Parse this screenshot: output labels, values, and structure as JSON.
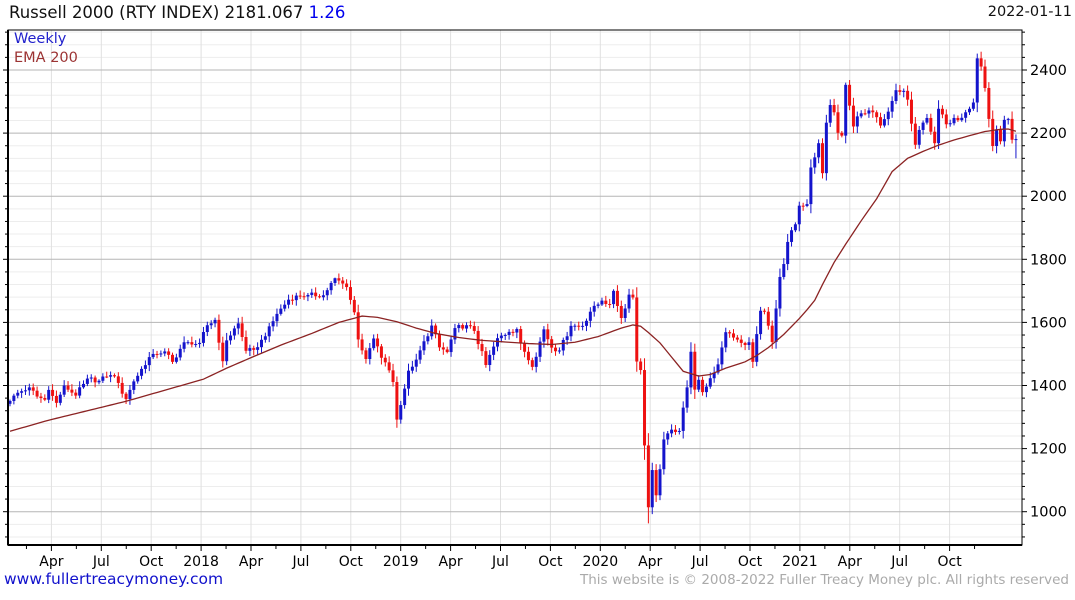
{
  "header": {
    "title": "Russell 2000 (RTY INDEX) 2181.067",
    "change": "1.26",
    "date": "2022-01-11"
  },
  "legend": {
    "timeframe": "Weekly",
    "overlay": "EMA 200"
  },
  "footer": {
    "link": "www.fullertreacymoney.com",
    "copyright": "This website is © 2008-2022 Fuller Treacy Money plc. All rights reserved"
  },
  "colors": {
    "up_candle": "#1414cc",
    "down_candle": "#ee1111",
    "ema_line": "#8b2323",
    "grid_major": "#b5b5b5",
    "grid_minor": "#ededed",
    "grid_vertical": "#e0e0e0",
    "axis": "#000000",
    "tick_label": "#000000"
  },
  "chart_data": {
    "type": "candlestick",
    "period": "weekly",
    "title": "Russell 2000 (RTY INDEX)",
    "last_price": 2181.067,
    "change": 1.26,
    "as_of": "2022-01-11",
    "overlay": "EMA 200",
    "y_axis": {
      "side": "right",
      "ticks": [
        2400,
        2200,
        2000,
        1800,
        1600,
        1400,
        1200,
        1000
      ],
      "minor_step": 40,
      "visible_range": [
        894,
        2527
      ]
    },
    "x_axis": {
      "labels": [
        "Apr",
        "Jul",
        "Oct",
        "2018",
        "Apr",
        "Jul",
        "Oct",
        "2019",
        "Apr",
        "Jul",
        "Oct",
        "2020",
        "Apr",
        "Jul",
        "Oct",
        "2021",
        "Apr",
        "Jul",
        "Oct"
      ],
      "weeks_total": 261,
      "first_week": "2017-01-20",
      "last_week": "2022-01-11"
    },
    "weekly_close_keyframes": [
      [
        0,
        1351
      ],
      [
        2,
        1377
      ],
      [
        5,
        1394
      ],
      [
        7,
        1365
      ],
      [
        9,
        1355
      ],
      [
        10,
        1386
      ],
      [
        12,
        1345
      ],
      [
        14,
        1400
      ],
      [
        17,
        1368
      ],
      [
        19,
        1405
      ],
      [
        20,
        1422
      ],
      [
        23,
        1415
      ],
      [
        25,
        1428
      ],
      [
        27,
        1429
      ],
      [
        29,
        1374
      ],
      [
        30,
        1357
      ],
      [
        32,
        1413
      ],
      [
        36,
        1490
      ],
      [
        37,
        1500
      ],
      [
        40,
        1508
      ],
      [
        42,
        1475
      ],
      [
        45,
        1537
      ],
      [
        47,
        1530
      ],
      [
        49,
        1535
      ],
      [
        51,
        1591
      ],
      [
        53,
        1608
      ],
      [
        55,
        1477
      ],
      [
        56,
        1543
      ],
      [
        59,
        1597
      ],
      [
        61,
        1510
      ],
      [
        63,
        1513
      ],
      [
        66,
        1556
      ],
      [
        69,
        1627
      ],
      [
        72,
        1672
      ],
      [
        74,
        1685
      ],
      [
        77,
        1687
      ],
      [
        81,
        1686
      ],
      [
        84,
        1740
      ],
      [
        87,
        1712
      ],
      [
        89,
        1632
      ],
      [
        90,
        1546
      ],
      [
        92,
        1484
      ],
      [
        94,
        1549
      ],
      [
        96,
        1488
      ],
      [
        98,
        1448
      ],
      [
        99,
        1411
      ],
      [
        100,
        1292
      ],
      [
        101,
        1338
      ],
      [
        103,
        1447
      ],
      [
        105,
        1482
      ],
      [
        109,
        1590
      ],
      [
        111,
        1521
      ],
      [
        113,
        1506
      ],
      [
        115,
        1582
      ],
      [
        118,
        1591
      ],
      [
        120,
        1573
      ],
      [
        123,
        1465
      ],
      [
        126,
        1550
      ],
      [
        129,
        1570
      ],
      [
        131,
        1579
      ],
      [
        132,
        1533
      ],
      [
        135,
        1459
      ],
      [
        138,
        1578
      ],
      [
        140,
        1520
      ],
      [
        142,
        1511
      ],
      [
        145,
        1589
      ],
      [
        148,
        1589
      ],
      [
        150,
        1634
      ],
      [
        153,
        1669
      ],
      [
        155,
        1658
      ],
      [
        156,
        1700
      ],
      [
        158,
        1614
      ],
      [
        160,
        1688
      ],
      [
        161,
        1679
      ],
      [
        162,
        1476
      ],
      [
        163,
        1449
      ],
      [
        164,
        1210
      ],
      [
        165,
        1014
      ],
      [
        166,
        1132
      ],
      [
        167,
        1052
      ],
      [
        169,
        1229
      ],
      [
        171,
        1260
      ],
      [
        173,
        1256
      ],
      [
        175,
        1394
      ],
      [
        176,
        1507
      ],
      [
        177,
        1387
      ],
      [
        178,
        1418
      ],
      [
        179,
        1379
      ],
      [
        181,
        1423
      ],
      [
        183,
        1467
      ],
      [
        185,
        1569
      ],
      [
        187,
        1552
      ],
      [
        189,
        1535
      ],
      [
        191,
        1537
      ],
      [
        192,
        1475
      ],
      [
        194,
        1637
      ],
      [
        195,
        1634
      ],
      [
        197,
        1538
      ],
      [
        198,
        1644
      ],
      [
        199,
        1744
      ],
      [
        200,
        1785
      ],
      [
        201,
        1855
      ],
      [
        202,
        1892
      ],
      [
        203,
        1911
      ],
      [
        204,
        1970
      ],
      [
        206,
        1975
      ],
      [
        207,
        2091
      ],
      [
        208,
        2123
      ],
      [
        209,
        2168
      ],
      [
        210,
        2073
      ],
      [
        211,
        2233
      ],
      [
        212,
        2289
      ],
      [
        213,
        2266
      ],
      [
        214,
        2201
      ],
      [
        215,
        2192
      ],
      [
        216,
        2353
      ],
      [
        217,
        2287
      ],
      [
        218,
        2221
      ],
      [
        219,
        2253
      ],
      [
        221,
        2262
      ],
      [
        223,
        2266
      ],
      [
        225,
        2224
      ],
      [
        227,
        2268
      ],
      [
        229,
        2336
      ],
      [
        231,
        2334
      ],
      [
        232,
        2306
      ],
      [
        234,
        2163
      ],
      [
        235,
        2210
      ],
      [
        237,
        2248
      ],
      [
        239,
        2168
      ],
      [
        240,
        2277
      ],
      [
        242,
        2228
      ],
      [
        244,
        2248
      ],
      [
        245,
        2241
      ],
      [
        247,
        2266
      ],
      [
        249,
        2297
      ],
      [
        250,
        2437
      ],
      [
        251,
        2411
      ],
      [
        252,
        2343
      ],
      [
        253,
        2245
      ],
      [
        254,
        2159
      ],
      [
        255,
        2212
      ],
      [
        256,
        2174
      ],
      [
        257,
        2242
      ],
      [
        258,
        2245
      ],
      [
        259,
        2179
      ],
      [
        260,
        2181
      ]
    ],
    "wick_overrides": {
      "53": {
        "high": 1615
      },
      "84": {
        "high": 1742
      },
      "100": {
        "low": 1266
      },
      "156": {
        "high": 1705
      },
      "165": {
        "low": 963
      },
      "176": {
        "high": 1537
      },
      "216": {
        "high": 2360
      },
      "250": {
        "high": 2452
      },
      "251": {
        "high": 2458
      },
      "260": {
        "low": 2120
      }
    },
    "ema_200_keyframes": [
      [
        0,
        1255
      ],
      [
        10,
        1290
      ],
      [
        20,
        1320
      ],
      [
        30,
        1350
      ],
      [
        40,
        1385
      ],
      [
        50,
        1420
      ],
      [
        56,
        1455
      ],
      [
        63,
        1492
      ],
      [
        70,
        1528
      ],
      [
        78,
        1565
      ],
      [
        85,
        1600
      ],
      [
        91,
        1620
      ],
      [
        95,
        1616
      ],
      [
        100,
        1602
      ],
      [
        105,
        1582
      ],
      [
        110,
        1565
      ],
      [
        116,
        1552
      ],
      [
        122,
        1543
      ],
      [
        128,
        1538
      ],
      [
        134,
        1533
      ],
      [
        140,
        1530
      ],
      [
        146,
        1537
      ],
      [
        152,
        1555
      ],
      [
        158,
        1582
      ],
      [
        161,
        1592
      ],
      [
        163,
        1588
      ],
      [
        165,
        1568
      ],
      [
        168,
        1535
      ],
      [
        171,
        1490
      ],
      [
        174,
        1445
      ],
      [
        178,
        1430
      ],
      [
        181,
        1435
      ],
      [
        185,
        1455
      ],
      [
        190,
        1475
      ],
      [
        193,
        1495
      ],
      [
        196,
        1520
      ],
      [
        200,
        1562
      ],
      [
        204,
        1612
      ],
      [
        206,
        1640
      ],
      [
        208,
        1670
      ],
      [
        210,
        1720
      ],
      [
        213,
        1790
      ],
      [
        216,
        1848
      ],
      [
        220,
        1922
      ],
      [
        224,
        1992
      ],
      [
        228,
        2078
      ],
      [
        232,
        2120
      ],
      [
        236,
        2142
      ],
      [
        240,
        2162
      ],
      [
        244,
        2178
      ],
      [
        248,
        2192
      ],
      [
        252,
        2205
      ],
      [
        256,
        2212
      ],
      [
        258,
        2213
      ],
      [
        260,
        2206
      ]
    ]
  }
}
